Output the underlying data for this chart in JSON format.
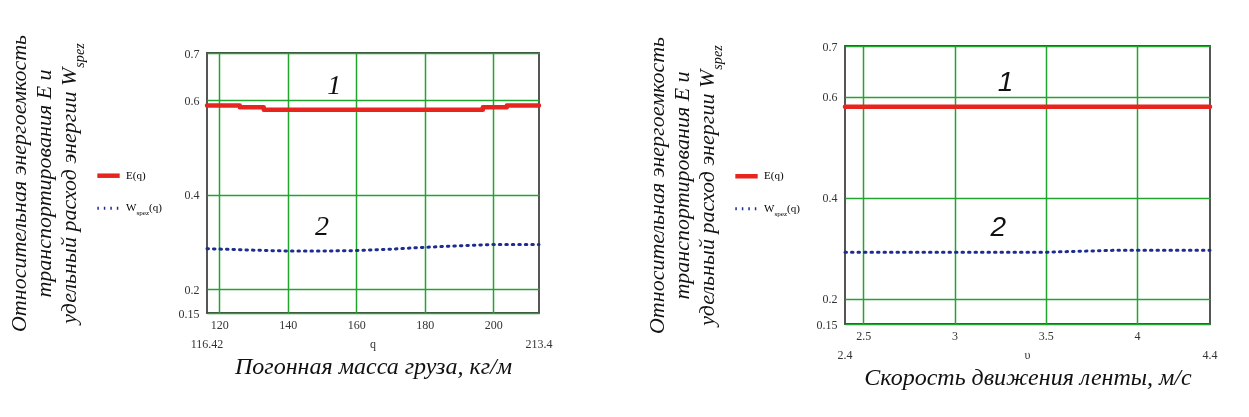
{
  "chart_data": [
    {
      "type": "line",
      "ylabel": "Относительная энергоемкость транспортирования E и удельный расход энергии W$_{spez}$",
      "xlabel": "Погонная масса груза, кг/м",
      "xlim": [
        116.42,
        213.4
      ],
      "xticks": [
        120,
        140,
        160,
        180,
        200
      ],
      "ylim": [
        0.15,
        0.7
      ],
      "yticks": [
        0.15,
        0.2,
        0.4,
        0.6,
        0.7
      ],
      "grid": true,
      "legend": "left",
      "marker": "none",
      "series": [
        {
          "name": "E(q)",
          "color": "#e8241e",
          "line_style": "solid",
          "x": [
            116.42,
            126,
            126,
            133,
            133,
            197,
            197,
            204,
            204,
            213.4
          ],
          "values": [
            0.589,
            0.589,
            0.585,
            0.585,
            0.58,
            0.58,
            0.585,
            0.585,
            0.589,
            0.589
          ]
        },
        {
          "name": "W$_{spez}$(q)",
          "color": "#1c2c90",
          "line_style": "dotted",
          "x": [
            116.42,
            130,
            140,
            150,
            160,
            170,
            180,
            190,
            200,
            213.4
          ],
          "values": [
            0.286,
            0.283,
            0.281,
            0.281,
            0.282,
            0.285,
            0.289,
            0.292,
            0.295,
            0.295
          ]
        }
      ],
      "annotations": [
        {
          "text": "1",
          "x": 153.6,
          "y": 0.58
        },
        {
          "text": "2",
          "x": 150,
          "y": 0.281
        },
        "116.42",
        "q",
        "213.4"
      ]
    },
    {
      "type": "line",
      "ylabel": "Относительная энергоемкость транспортирования E и удельный расход энергии W$_{spez}$",
      "xlabel": "Скорость движения ленты, м/с",
      "xlim": [
        2.4,
        4.4
      ],
      "xticks": [
        2.5,
        3,
        3.5,
        4
      ],
      "ylim": [
        0.15,
        0.7
      ],
      "yticks": [
        0.15,
        0.2,
        0.4,
        0.6,
        0.7
      ],
      "grid": true,
      "legend": "left",
      "marker": "none",
      "series": [
        {
          "name": "E(q)",
          "color": "#e8241e",
          "line_style": "solid",
          "x": [
            2.4,
            4.4
          ],
          "values": [
            0.58,
            0.58
          ]
        },
        {
          "name": "W$_{spez}$(q)",
          "color": "#1c2c90",
          "line_style": "dotted",
          "x": [
            2.4,
            3.5,
            3.7,
            3.9,
            4.4
          ],
          "values": [
            0.292,
            0.292,
            0.294,
            0.296,
            0.296
          ]
        }
      ],
      "annotations": [
        {
          "text": "1",
          "x": 3.28,
          "y": 0.58
        },
        {
          "text": "2",
          "x": 3.24,
          "y": 0.292
        },
        "2.4",
        "υ",
        "4.4"
      ]
    }
  ]
}
